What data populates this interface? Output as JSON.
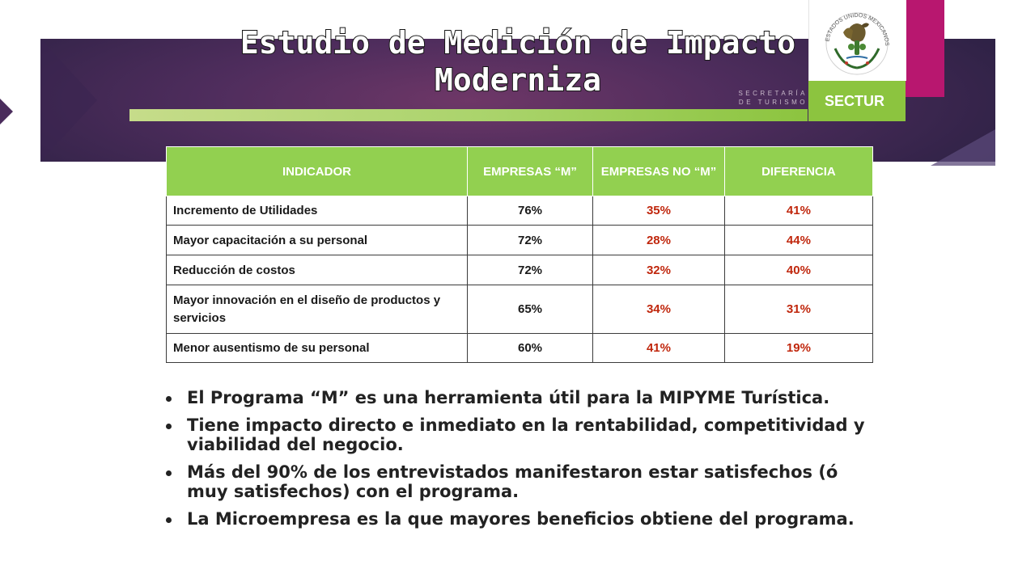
{
  "header": {
    "title_line1": "Estudio de Medición de Impacto",
    "title_line2": "Moderniza",
    "secretaria_line1": "SECRETARÍA",
    "secretaria_line2": "DE TURISMO",
    "brand": "SECTUR",
    "seal_text": "ESTADOS UNIDOS MEXICANOS"
  },
  "colors": {
    "banner_purple": "#4f2d5d",
    "accent_green": "#92d050",
    "brand_pink": "#b8176f",
    "value_red": "#c0270d"
  },
  "table": {
    "headers": [
      "INDICADOR",
      "EMPRESAS “M”",
      "EMPRESAS NO “M”",
      "DIFERENCIA"
    ],
    "rows": [
      [
        "Incremento de Utilidades",
        "76%",
        "35%",
        "41%"
      ],
      [
        "Mayor capacitación a su personal",
        "72%",
        "28%",
        "44%"
      ],
      [
        "Reducción de costos",
        "72%",
        "32%",
        "40%"
      ],
      [
        "Mayor innovación en el diseño de productos y servicios",
        "65%",
        "34%",
        "31%"
      ],
      [
        "Menor ausentismo de su personal",
        "60%",
        "41%",
        "19%"
      ]
    ]
  },
  "bullets": [
    "El Programa “M” es una herramienta útil para la MIPYME Turística.",
    "Tiene impacto directo e inmediato en la rentabilidad, competitividad y viabilidad del negocio.",
    "Más del 90% de los entrevistados manifestaron estar satisfechos (ó muy satisfechos) con el programa.",
    "La Microempresa es la que mayores beneficios obtiene del programa."
  ]
}
